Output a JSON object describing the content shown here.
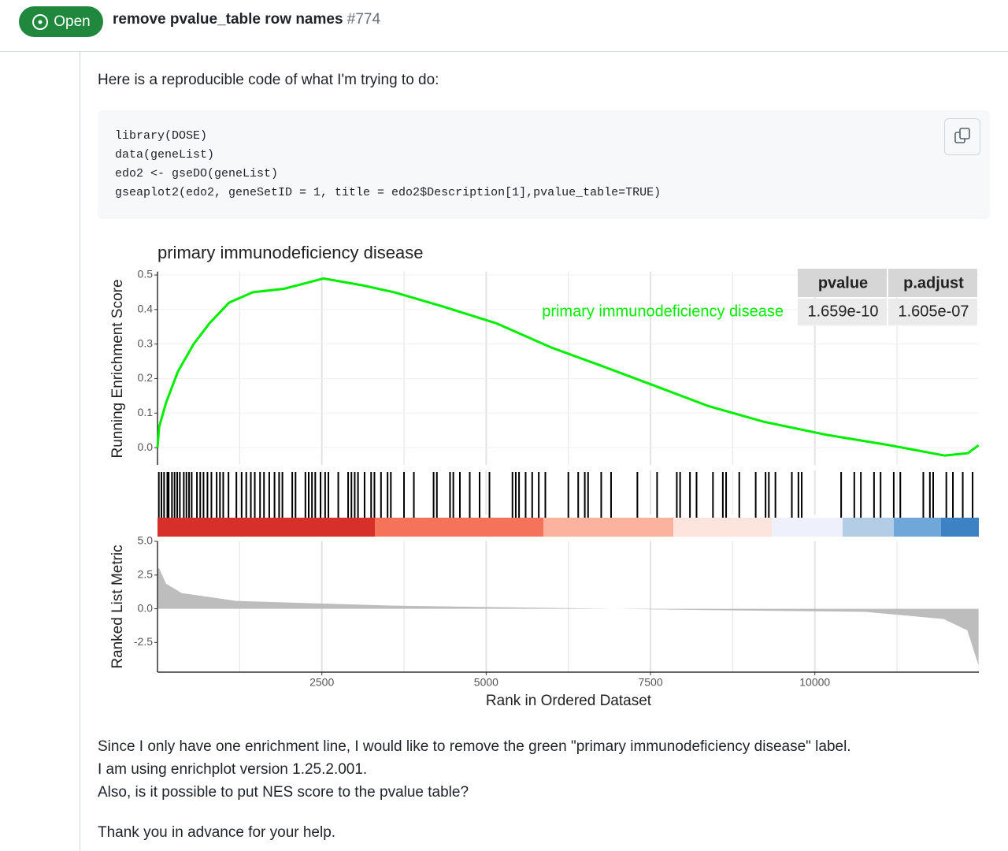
{
  "header": {
    "status": "Open",
    "title": "remove pvalue_table row names",
    "number": "#774"
  },
  "body": {
    "intro": "Here is a reproducible code of what I'm trying to do:",
    "code": [
      "library(DOSE)",
      "data(geneList)",
      "edo2 <- gseDO(geneList)",
      "gseaplot2(edo2, geneSetID = 1, title = edo2$Description[1],pvalue_table=TRUE)"
    ],
    "paragraphs": [
      "Since I only have one enrichment line, I would like to remove the green \"primary immunodeficiency disease\" label.",
      "I am using enrichplot version 1.25.2.001.",
      "Also, is it possible to put NES score to the pvalue table?"
    ],
    "closing": "Thank you in advance for your help."
  },
  "figure": {
    "title": "primary immunodeficiency disease",
    "x_label": "Rank in Ordered Dataset",
    "xlim": [
      0,
      12495
    ],
    "xticks": [
      2500,
      5000,
      7500,
      10000
    ],
    "es_panel": {
      "y_label": "Running Enrichment Score",
      "ylim": [
        -0.05,
        0.51
      ],
      "yticks": [
        {
          "value": 0,
          "label": "0.0"
        },
        0.1,
        0.2,
        0.3,
        0.4,
        0.5
      ],
      "series": {
        "name": "primary immunodeficiency disease",
        "color": "#00ee00",
        "x": [
          0,
          25,
          130,
          310,
          550,
          790,
          1090,
          1450,
          1925,
          2525,
          3120,
          3600,
          4320,
          5155,
          5990,
          6710,
          7550,
          8385,
          9220,
          10180,
          11135,
          11975,
          12330,
          12490
        ],
        "values": [
          0,
          0.06,
          0.13,
          0.22,
          0.3,
          0.36,
          0.42,
          0.45,
          0.46,
          0.49,
          0.47,
          0.45,
          0.41,
          0.36,
          0.29,
          0.24,
          0.18,
          0.12,
          0.075,
          0.037,
          0.007,
          -0.023,
          -0.016,
          0.007
        ]
      }
    },
    "table": {
      "columns": [
        "pvalue",
        "p.adjust"
      ],
      "row": [
        "1.659e-10",
        "1.605e-07"
      ]
    },
    "hits": [
      20,
      60,
      100,
      150,
      170,
      220,
      260,
      300,
      340,
      400,
      440,
      480,
      520,
      600,
      650,
      700,
      760,
      820,
      900,
      950,
      1000,
      1080,
      1200,
      1280,
      1350,
      1420,
      1480,
      1560,
      1620,
      1700,
      1780,
      1850,
      1900,
      2050,
      2100,
      2250,
      2300,
      2350,
      2400,
      2480,
      2550,
      2600,
      2750,
      2900,
      2950,
      3000,
      3050,
      3150,
      3250,
      3300,
      3400,
      3500,
      3550,
      3750,
      3900,
      4200,
      4250,
      4450,
      4500,
      4600,
      4750,
      4900,
      5050,
      5400,
      5450,
      5500,
      5600,
      5700,
      5800,
      5900,
      6250,
      6400,
      6500,
      6550,
      6750,
      6900,
      7300,
      7600,
      7900,
      7950,
      8100,
      8200,
      8450,
      8600,
      8650,
      8850,
      9100,
      9250,
      9300,
      9400,
      9650,
      9750,
      9800,
      10400,
      10600,
      10700,
      10900,
      11000,
      11200,
      11300,
      11650,
      11750,
      11800,
      12000,
      12100,
      12250,
      12400
    ],
    "rank_panel": {
      "y_label": "Ranked List Metric",
      "ylim": [
        -4.7,
        5.0
      ],
      "yticks": [
        -2.5,
        {
          "value": 0,
          "label": "0.0"
        },
        2.5,
        {
          "value": 5,
          "label": "5.0"
        }
      ],
      "x": [
        0,
        25,
        130,
        370,
        1200,
        3590,
        5980,
        8370,
        10760,
        11960,
        12320,
        12490
      ],
      "values": [
        3.0,
        3.0,
        1.86,
        1.16,
        0.58,
        0.23,
        0.06,
        -0.1,
        -0.23,
        -0.76,
        -1.6,
        -4.2
      ]
    }
  }
}
